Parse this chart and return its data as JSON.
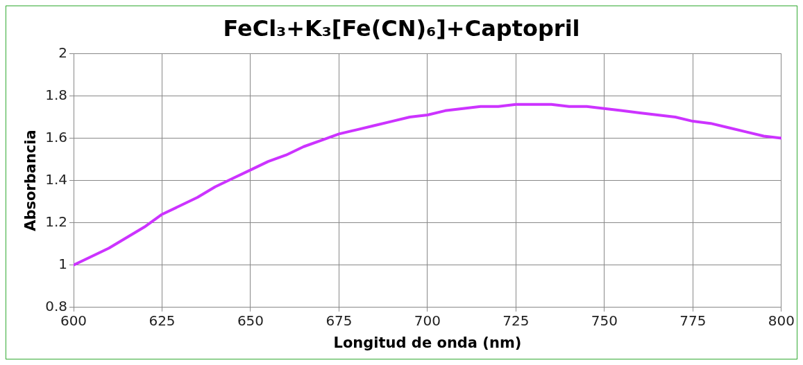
{
  "chart_data": {
    "type": "line",
    "title": "FeCl₃+K₃[Fe(CN)₆]+Captopril",
    "xlabel": "Longitud de onda (nm)",
    "ylabel": "Absorbancia",
    "x": [
      600,
      605,
      610,
      615,
      620,
      625,
      630,
      635,
      640,
      645,
      650,
      655,
      660,
      665,
      670,
      675,
      680,
      685,
      690,
      695,
      700,
      705,
      710,
      715,
      720,
      725,
      730,
      735,
      740,
      745,
      750,
      755,
      760,
      765,
      770,
      775,
      780,
      785,
      790,
      795,
      800
    ],
    "series": [
      {
        "color": "#cc33ff",
        "values": [
          1.0,
          1.04,
          1.08,
          1.13,
          1.18,
          1.24,
          1.28,
          1.32,
          1.37,
          1.41,
          1.45,
          1.49,
          1.52,
          1.56,
          1.59,
          1.62,
          1.64,
          1.66,
          1.68,
          1.7,
          1.71,
          1.73,
          1.74,
          1.75,
          1.75,
          1.76,
          1.76,
          1.76,
          1.75,
          1.75,
          1.74,
          1.73,
          1.72,
          1.71,
          1.7,
          1.68,
          1.67,
          1.65,
          1.63,
          1.61,
          1.6
        ]
      }
    ],
    "xlim": [
      600,
      800
    ],
    "xticks": [
      600,
      625,
      650,
      675,
      700,
      725,
      750,
      775,
      800
    ],
    "ylim": [
      0.8,
      2
    ],
    "yticks": [
      0.8,
      1,
      1.2,
      1.4,
      1.6,
      1.8,
      2
    ],
    "grid": true,
    "legend": false,
    "marker": "none",
    "line_style": "solid"
  }
}
